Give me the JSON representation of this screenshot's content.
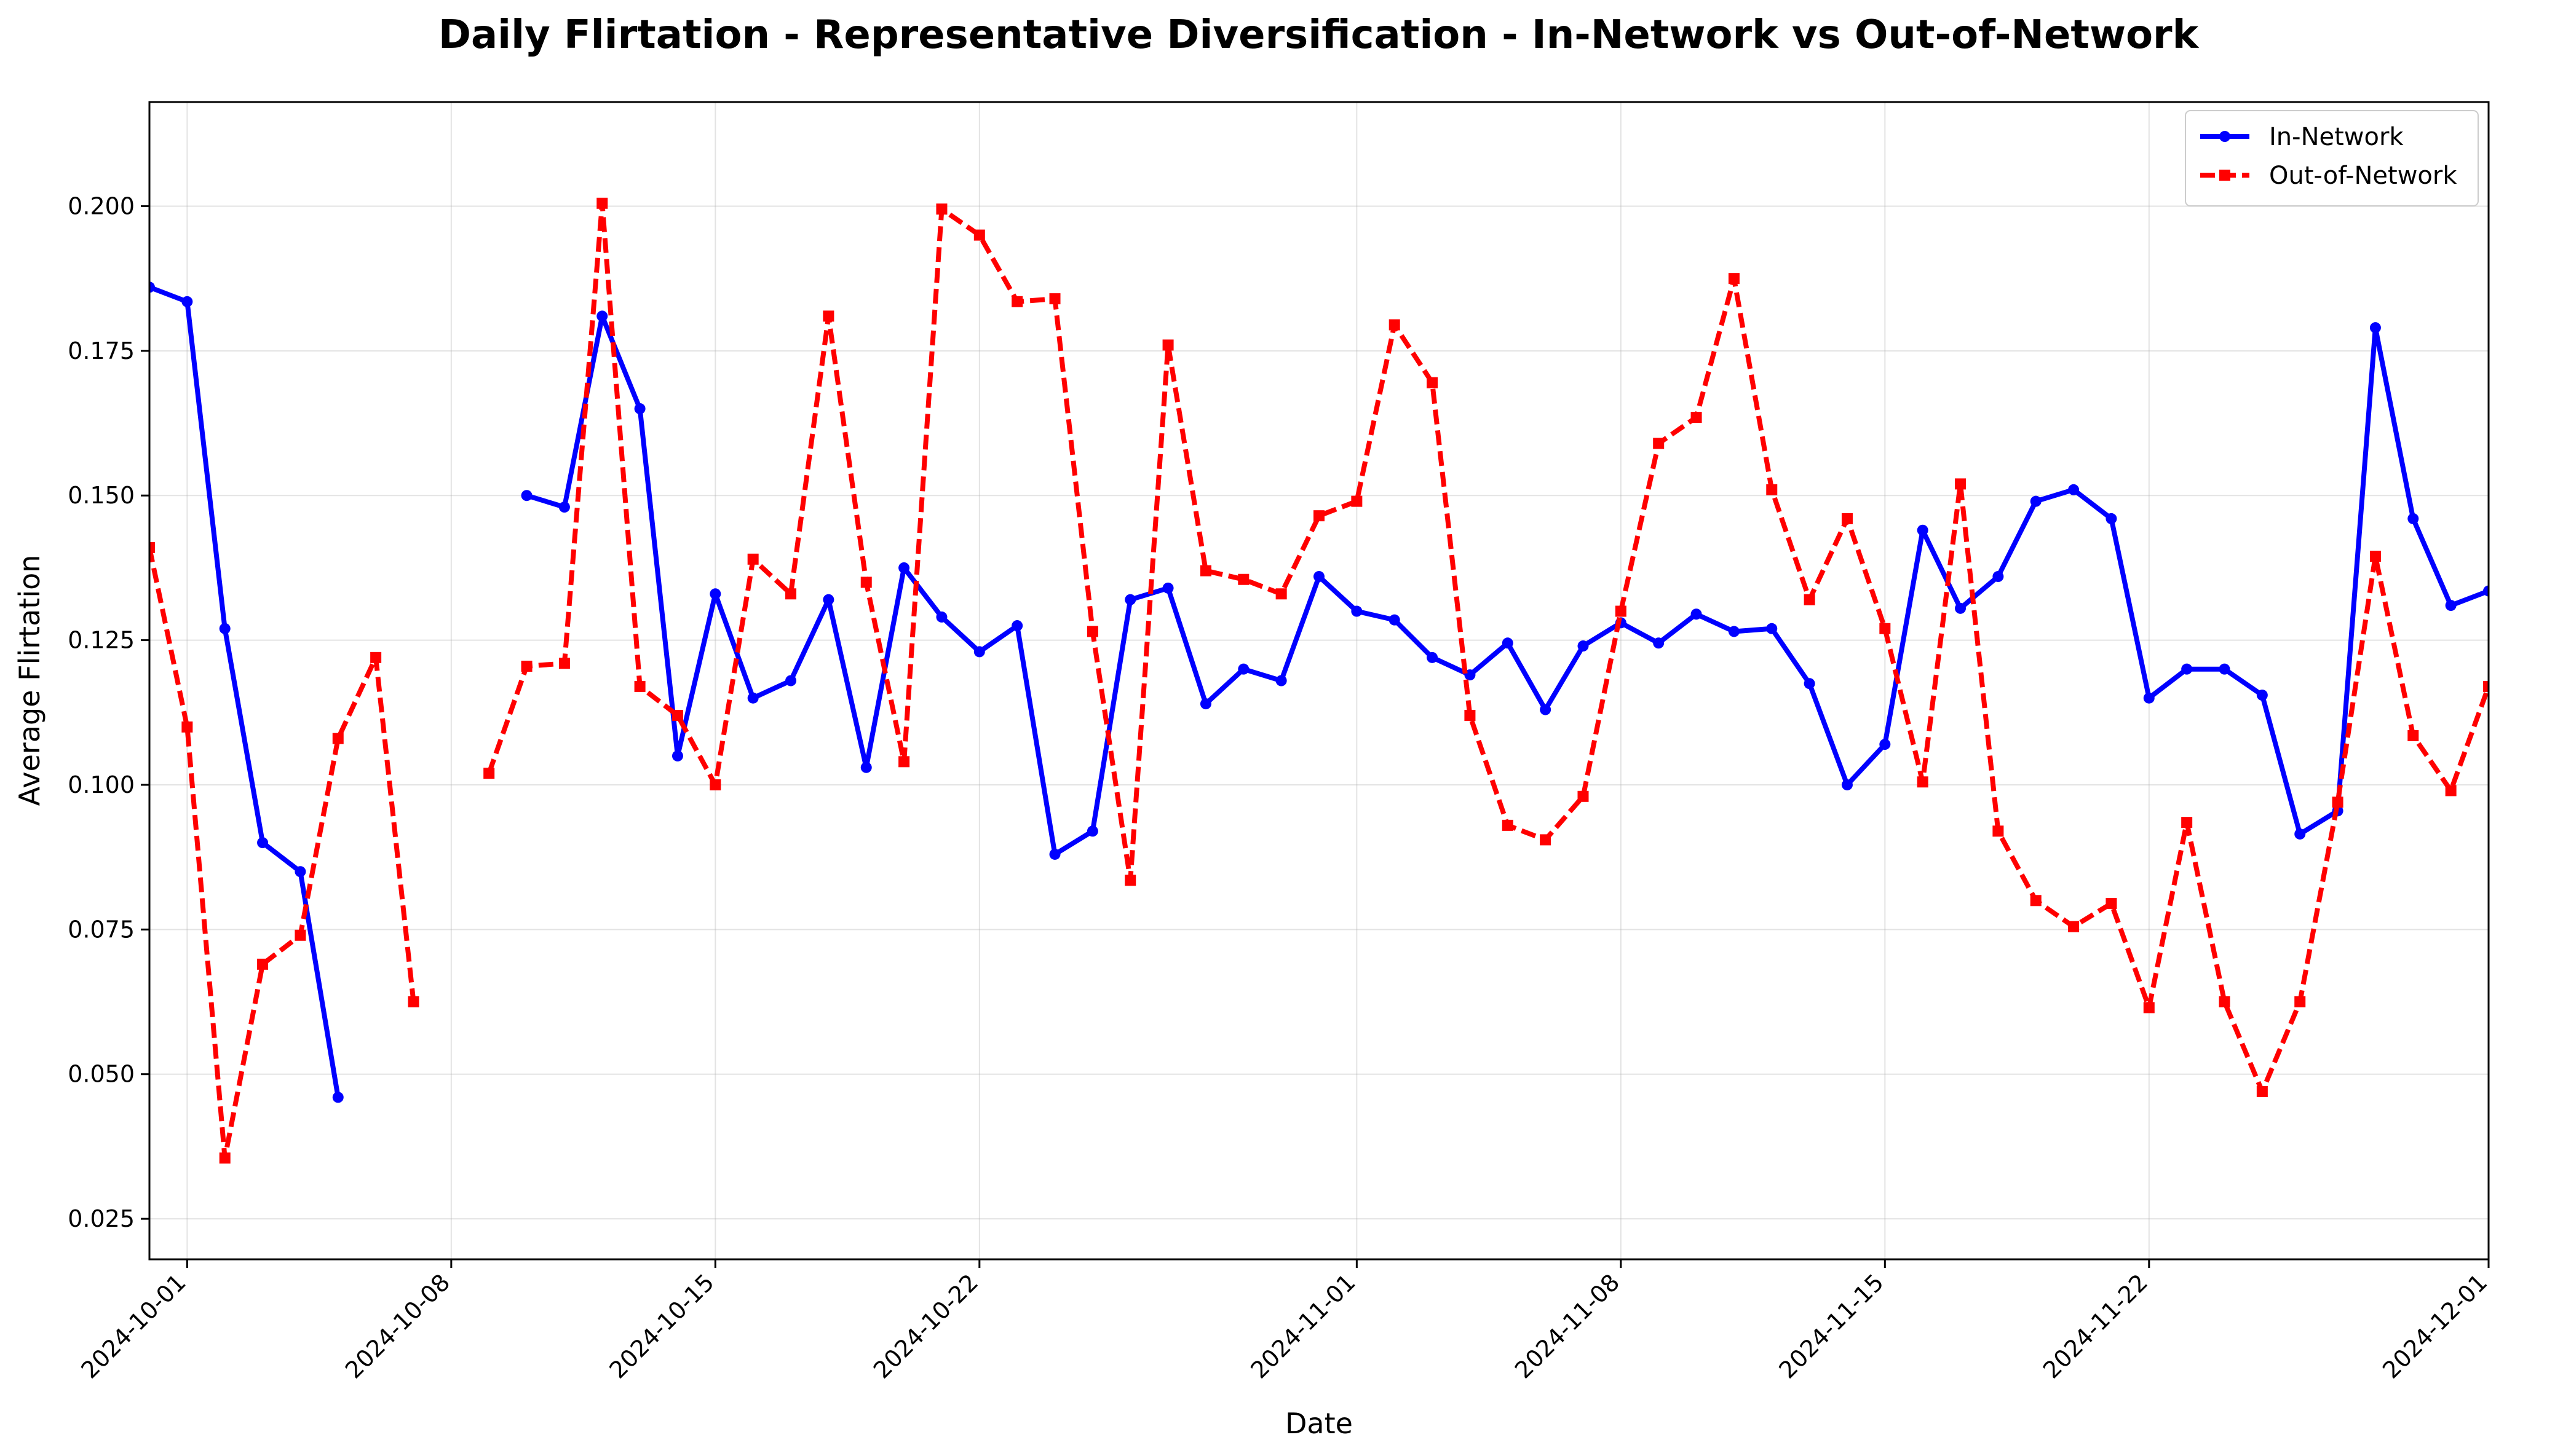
{
  "chart_data": {
    "type": "line",
    "title": "Daily Flirtation - Representative Diversification - In-Network vs Out-of-Network",
    "xlabel": "Date",
    "ylabel": "Average Flirtation",
    "x_start": "2024-09-30",
    "xlim": [
      "2024-09-30",
      "2024-12-01"
    ],
    "ylim": [
      0.018,
      0.218
    ],
    "x_ticks": [
      "2024-10-01",
      "2024-10-08",
      "2024-10-15",
      "2024-10-22",
      "2024-11-01",
      "2024-11-08",
      "2024-11-15",
      "2024-11-22",
      "2024-12-01"
    ],
    "y_ticks": [
      "0.025",
      "0.050",
      "0.075",
      "0.100",
      "0.125",
      "0.150",
      "0.175",
      "0.200"
    ],
    "grid": true,
    "legend_position": "top-right",
    "series": [
      {
        "name": "In-Network",
        "color": "#0000ff",
        "style": "solid",
        "marker": "circle",
        "values": [
          0.186,
          0.1835,
          0.127,
          0.09,
          0.085,
          0.046,
          null,
          null,
          null,
          null,
          0.15,
          0.148,
          0.181,
          0.165,
          0.105,
          0.133,
          0.115,
          0.118,
          0.132,
          0.103,
          0.1375,
          0.129,
          0.123,
          0.1275,
          0.088,
          0.092,
          0.132,
          0.134,
          0.114,
          0.12,
          0.118,
          0.136,
          0.13,
          0.1285,
          0.122,
          0.119,
          0.1245,
          0.113,
          0.124,
          0.128,
          0.1245,
          0.1295,
          0.1265,
          0.127,
          0.1175,
          0.1,
          0.107,
          0.144,
          0.1305,
          0.136,
          0.149,
          0.151,
          0.146,
          0.115,
          0.12,
          0.12,
          0.1155,
          0.0915,
          0.0955,
          0.179,
          0.146,
          0.131,
          0.1335
        ]
      },
      {
        "name": "Out-of-Network",
        "color": "#ff0000",
        "style": "dashed",
        "marker": "square",
        "values": [
          0.141,
          0.11,
          0.0355,
          0.069,
          0.074,
          0.108,
          0.122,
          0.0625,
          null,
          0.102,
          0.1205,
          0.121,
          0.2005,
          0.117,
          0.112,
          0.1,
          0.139,
          0.133,
          0.181,
          0.135,
          0.104,
          0.1995,
          0.195,
          0.1835,
          0.184,
          0.1265,
          0.0835,
          0.176,
          0.137,
          0.1355,
          0.133,
          0.1465,
          0.149,
          0.1795,
          0.1695,
          0.112,
          0.093,
          0.0905,
          0.098,
          0.13,
          0.159,
          0.1635,
          0.1875,
          0.151,
          0.132,
          0.146,
          0.127,
          0.1005,
          0.152,
          0.092,
          0.08,
          0.0755,
          0.0795,
          0.0615,
          0.0935,
          0.0625,
          0.047,
          0.0625,
          0.097,
          0.1395,
          0.1085,
          0.099,
          0.117
        ]
      }
    ]
  }
}
